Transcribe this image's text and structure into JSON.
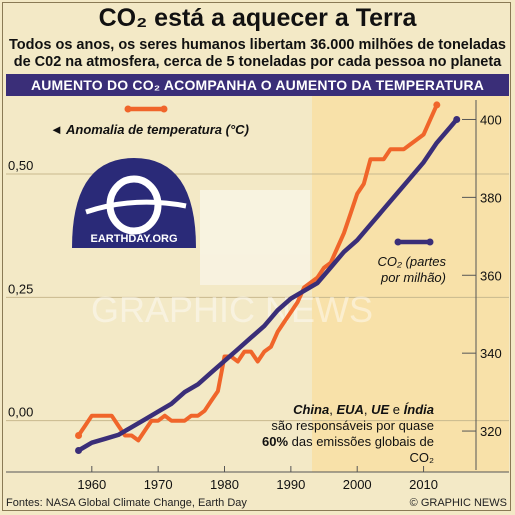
{
  "title": "CO₂ está a aquecer a Terra",
  "subtitle_line1": "Todos os anos, os seres humanos libertam 36.000 milhões de toneladas",
  "subtitle_line2": "de C02 na atmosfera, cerca de 5 toneladas por cada pessoa no planeta",
  "banner": "AUMENTO DO CO₂ ACOMPANHA O AUMENTO DA TEMPERATURA",
  "logo_text": "EARTHDAY.ORG",
  "watermark_text": "GRAPHIC NEWS",
  "annotation": {
    "c1": "China",
    "s1": ", ",
    "c2": "EUA",
    "s2": ", ",
    "c3": "UE",
    "s3": " e ",
    "c4": "Índia",
    "line2": "são responsáveis por quase",
    "pct": "60%",
    "line3": " das emissões globais de CO₂"
  },
  "footer_source": "Fontes: NASA Global Climate Change, Earth Day",
  "footer_credit": "© GRAPHIC NEWS",
  "colors": {
    "temperature": "#f0652a",
    "co2": "#3a2e78",
    "banner": "#3a2e78",
    "background": "#f3e9c6",
    "grid": "#c9b98e"
  },
  "chart_data": {
    "type": "line",
    "x_ticks": [
      1960,
      1970,
      1980,
      1990,
      2000,
      2010
    ],
    "xlim": [
      1954,
      2017
    ],
    "series": [
      {
        "name": "Anomalia de temperatura (°C)",
        "legend_label": "◄ Anomalia de temperatura (°C)",
        "axis": "left",
        "ylim": [
          -0.1,
          0.65
        ],
        "y_ticks": [
          0.0,
          0.25,
          0.5
        ],
        "y_tick_labels": [
          "0,00",
          "0,25",
          "0,50"
        ],
        "x": [
          1958,
          1959,
          1960,
          1961,
          1962,
          1963,
          1964,
          1965,
          1966,
          1967,
          1968,
          1969,
          1970,
          1971,
          1972,
          1973,
          1974,
          1975,
          1976,
          1977,
          1978,
          1979,
          1980,
          1981,
          1982,
          1983,
          1984,
          1985,
          1986,
          1987,
          1988,
          1989,
          1990,
          1991,
          1992,
          1993,
          1994,
          1995,
          1996,
          1997,
          1998,
          1999,
          2000,
          2001,
          2002,
          2003,
          2004,
          2005,
          2006,
          2007,
          2008,
          2009,
          2010,
          2011,
          2012
        ],
        "values": [
          -0.03,
          -0.01,
          0.01,
          0.01,
          0.01,
          0.01,
          -0.01,
          -0.03,
          -0.03,
          -0.04,
          -0.02,
          0.0,
          0.0,
          0.01,
          0.0,
          0.0,
          0.0,
          0.01,
          0.01,
          0.02,
          0.04,
          0.06,
          0.13,
          0.13,
          0.12,
          0.14,
          0.14,
          0.12,
          0.14,
          0.15,
          0.18,
          0.2,
          0.22,
          0.24,
          0.27,
          0.28,
          0.29,
          0.31,
          0.32,
          0.35,
          0.38,
          0.42,
          0.46,
          0.48,
          0.53,
          0.53,
          0.53,
          0.55,
          0.55,
          0.55,
          0.56,
          0.57,
          0.58,
          0.61,
          0.64
        ]
      },
      {
        "name": "CO₂ (partes por milhão)",
        "legend_line1": "CO₂ (partes",
        "legend_line2": "por milhão)",
        "axis": "right",
        "ylim": [
          310,
          405
        ],
        "y_ticks": [
          320,
          340,
          360,
          380,
          400
        ],
        "y_tick_labels": [
          "320",
          "340",
          "360",
          "380",
          "400"
        ],
        "x": [
          1958,
          1960,
          1962,
          1964,
          1966,
          1968,
          1970,
          1972,
          1974,
          1976,
          1978,
          1980,
          1982,
          1984,
          1986,
          1988,
          1990,
          1992,
          1994,
          1996,
          1998,
          2000,
          2002,
          2004,
          2006,
          2008,
          2010,
          2012,
          2014,
          2015
        ],
        "values": [
          315,
          317,
          318,
          319,
          321,
          323,
          325,
          327,
          330,
          332,
          335,
          338,
          341,
          344,
          347,
          351,
          354,
          356,
          358,
          362,
          366,
          369,
          373,
          377,
          381,
          385,
          389,
          394,
          398,
          400
        ]
      }
    ]
  }
}
